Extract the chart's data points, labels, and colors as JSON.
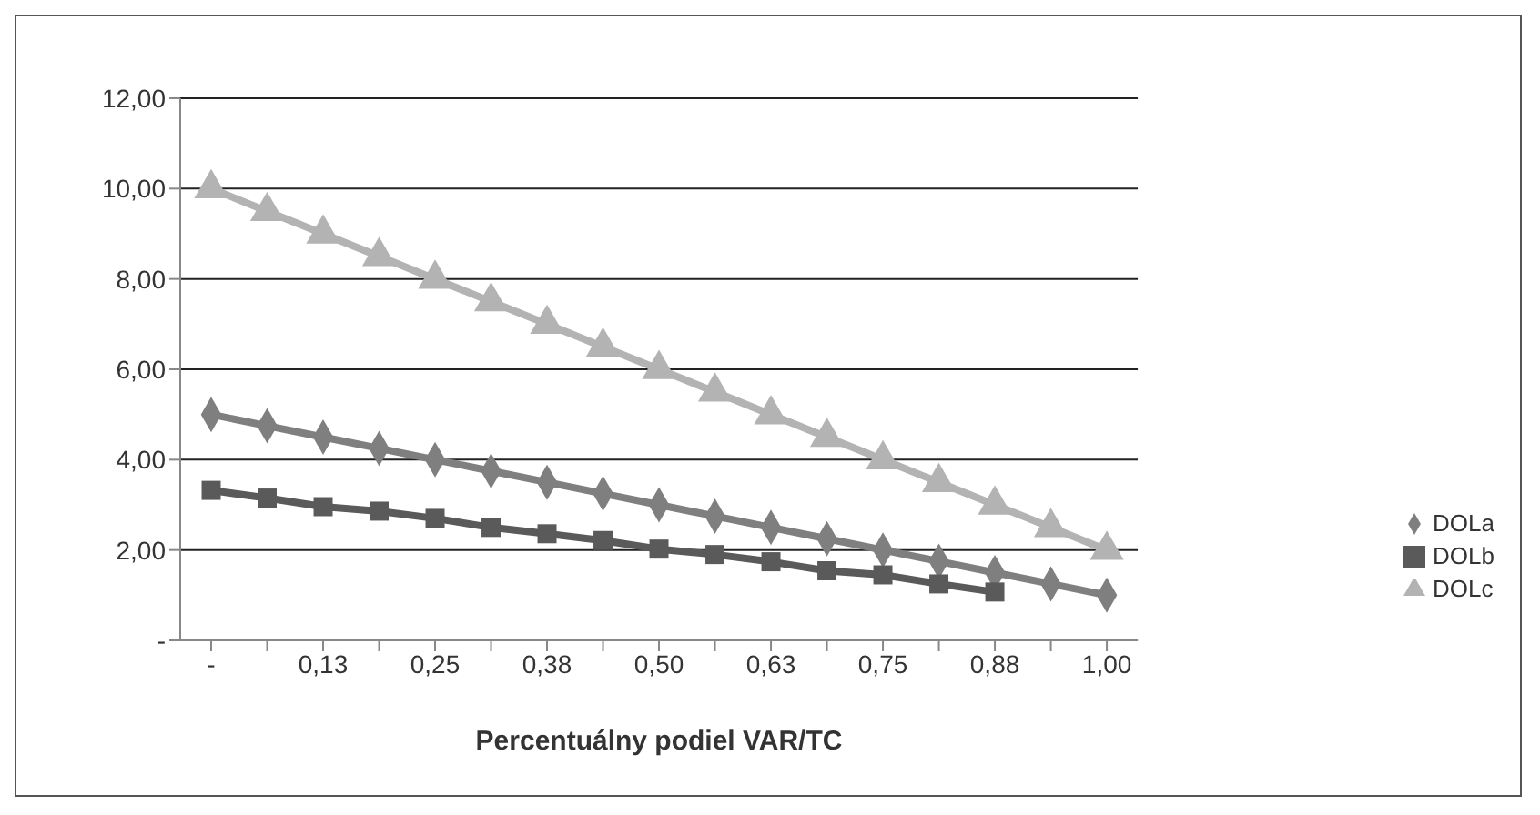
{
  "chart_data": {
    "type": "line",
    "xlabel": "Percentuálny podiel VAR/TC",
    "categories": [
      "-",
      null,
      "0,13",
      null,
      "0,25",
      null,
      "0,38",
      null,
      "0,50",
      null,
      "0,63",
      null,
      "0,75",
      null,
      "0,88",
      null,
      "1,00"
    ],
    "series": [
      {
        "name": "DOLa",
        "color": "#7f7f7f",
        "marker": "diamond",
        "values": [
          5.0,
          4.75,
          4.5,
          4.25,
          4.0,
          3.75,
          3.5,
          3.25,
          3.0,
          2.75,
          2.5,
          2.25,
          2.0,
          1.75,
          1.5,
          1.25,
          1.0
        ]
      },
      {
        "name": "DOLb",
        "color": "#5a5a5a",
        "marker": "square",
        "values": [
          3.32,
          3.15,
          2.96,
          2.86,
          2.7,
          2.5,
          2.36,
          2.21,
          2.02,
          1.9,
          1.74,
          1.54,
          1.45,
          1.25,
          1.07,
          null,
          null
        ]
      },
      {
        "name": "DOLc",
        "color": "#b3b3b3",
        "marker": "triangle",
        "values": [
          10.0,
          9.5,
          9.0,
          8.5,
          8.0,
          7.5,
          7.0,
          6.5,
          6.0,
          5.5,
          5.0,
          4.5,
          4.0,
          3.5,
          3.0,
          2.5,
          2.0
        ]
      }
    ],
    "ylim": [
      0,
      12
    ],
    "yticks": [
      {
        "value": 0,
        "label": "-"
      },
      {
        "value": 2,
        "label": "2,00"
      },
      {
        "value": 4,
        "label": "4,00"
      },
      {
        "value": 6,
        "label": "6,00"
      },
      {
        "value": 8,
        "label": "8,00"
      },
      {
        "value": 10,
        "label": "10,00"
      },
      {
        "value": 12,
        "label": "12,00"
      }
    ],
    "grid": "y",
    "legend": "right",
    "line_style": "solid"
  }
}
